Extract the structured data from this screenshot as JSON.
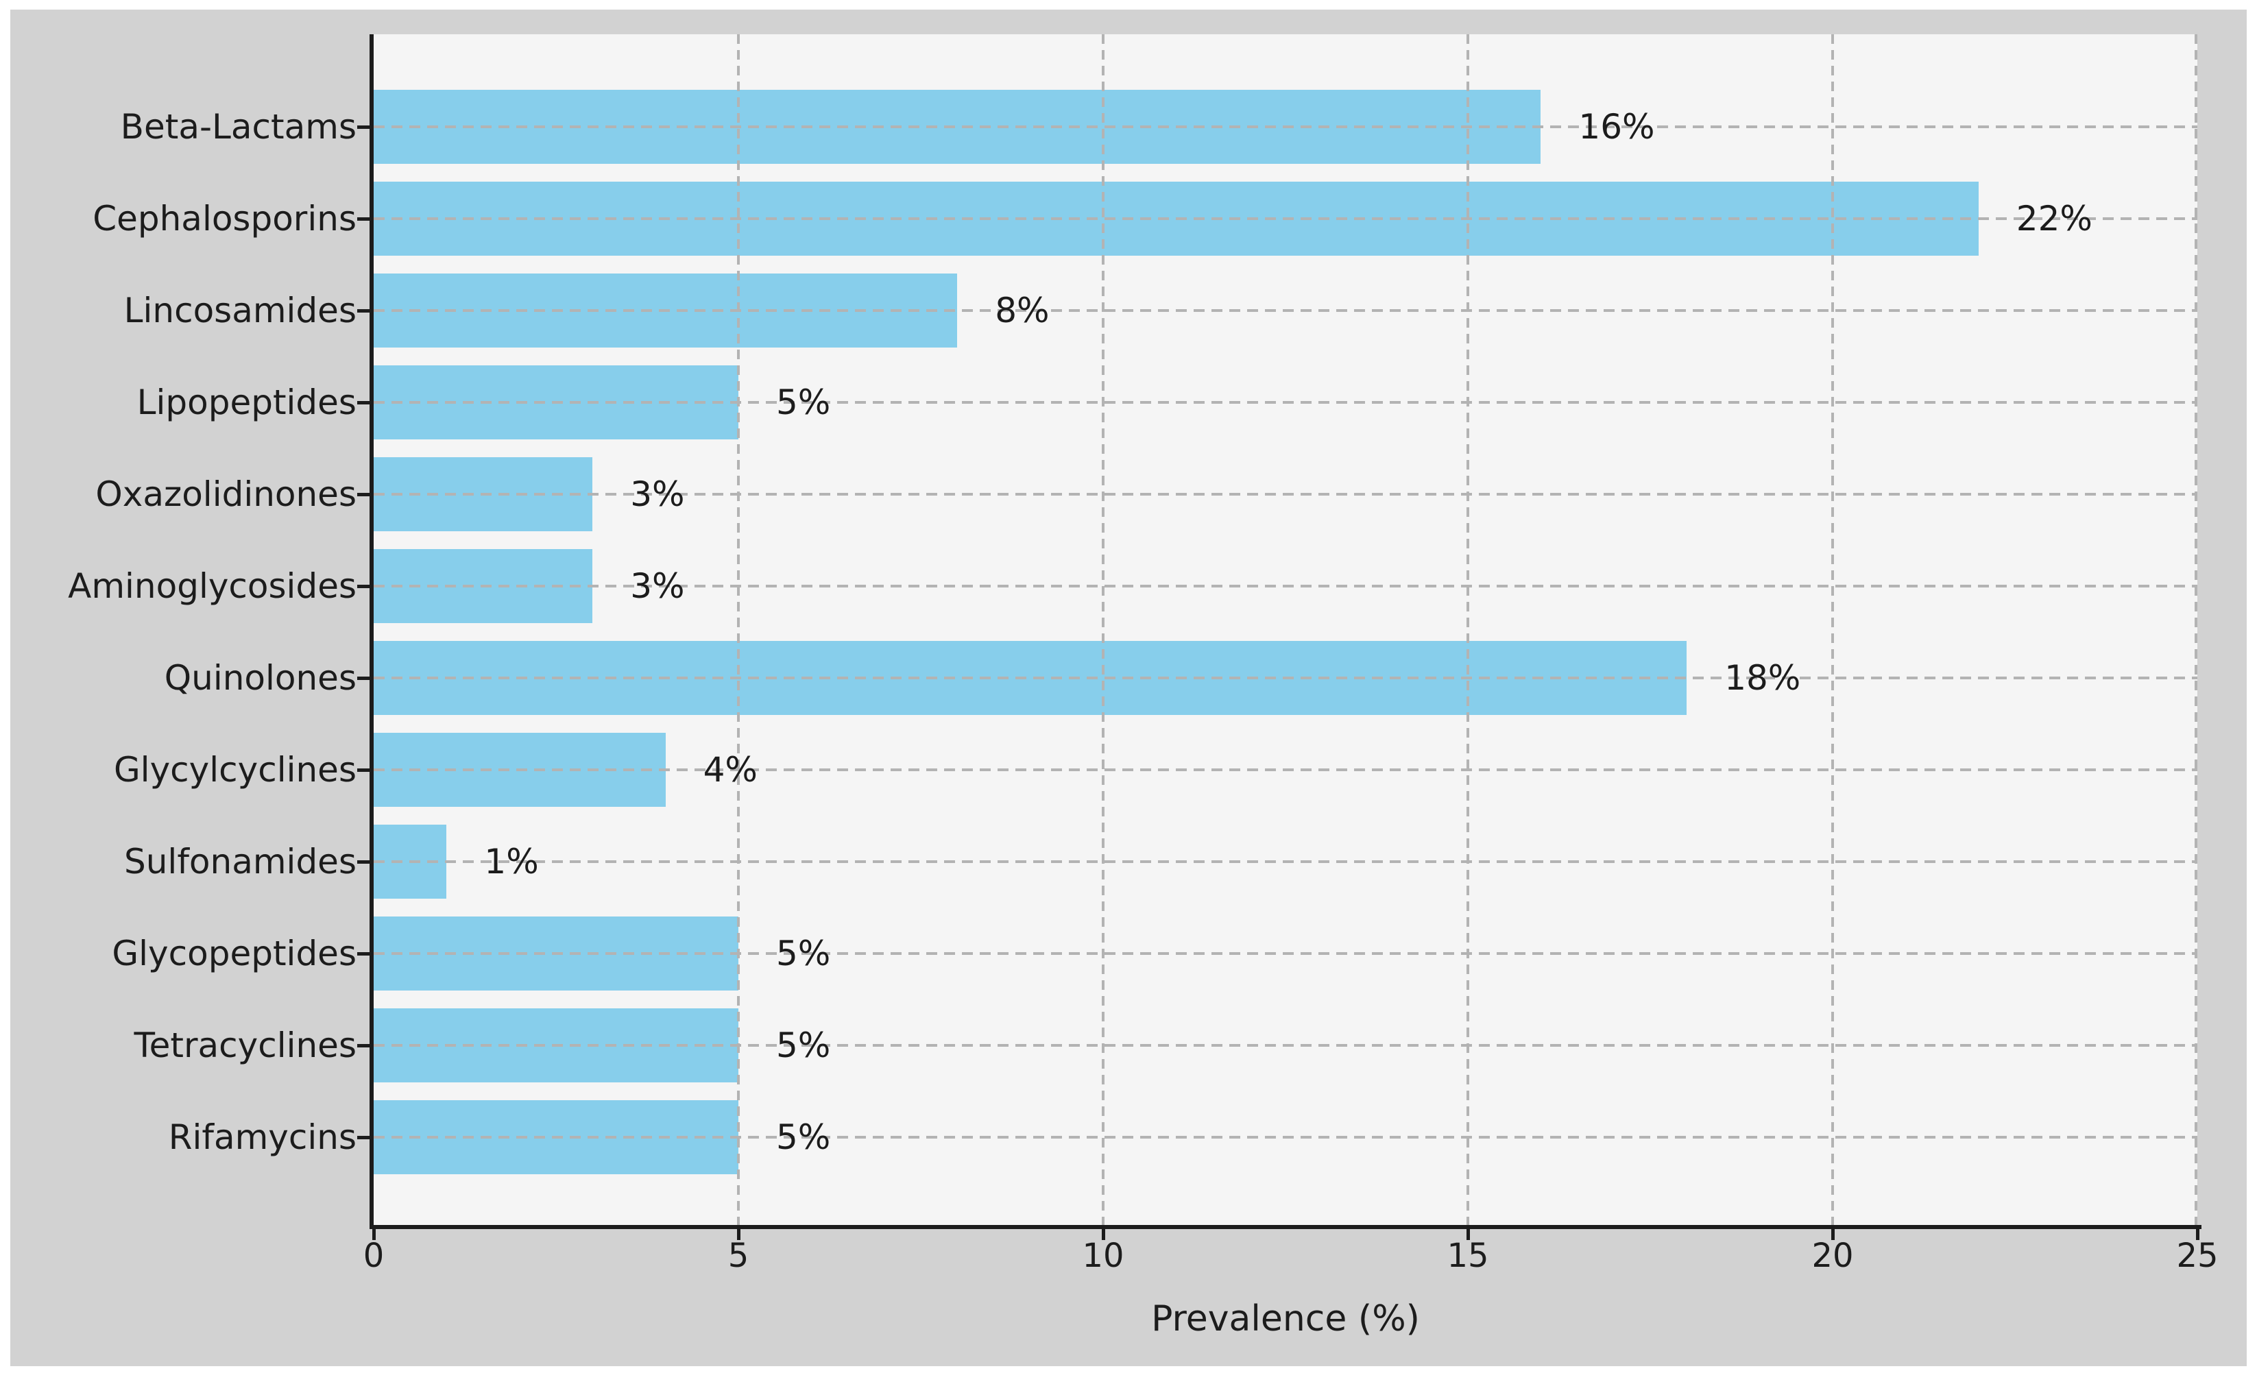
{
  "chart_data": {
    "type": "bar",
    "orientation": "horizontal",
    "title": "",
    "xlabel": "Prevalence (%)",
    "ylabel": "",
    "categories": [
      "Beta-Lactams",
      "Cephalosporins",
      "Lincosamides",
      "Lipopeptides",
      "Oxazolidinones",
      "Aminoglycosides",
      "Quinolones",
      "Glycylcyclines",
      "Sulfonamides",
      "Glycopeptides",
      "Tetracyclines",
      "Rifamycins"
    ],
    "values": [
      16,
      22,
      8,
      5,
      3,
      3,
      18,
      4,
      1,
      5,
      5,
      5
    ],
    "bar_labels": [
      "16%",
      "22%",
      "8%",
      "5%",
      "3%",
      "3%",
      "18%",
      "4%",
      "1%",
      "5%",
      "5%",
      "5%"
    ],
    "xlim": [
      0,
      25
    ],
    "x_ticks": [
      0,
      5,
      10,
      15,
      20,
      25
    ],
    "x_tick_labels": [
      "0",
      "5",
      "10",
      "15",
      "20",
      "25"
    ],
    "grid": "dashed gridlines on both axes, drawn above bars",
    "legend_position": "none",
    "colors": {
      "bar": "#87CEEB",
      "plot_background": "#f5f5f5",
      "figure_background": "#d2d2d2",
      "page_background": "#ffffff",
      "grid_line": "#b3b3b3",
      "axis_line": "#1c1c1c",
      "text": "#1c1c1c"
    }
  }
}
